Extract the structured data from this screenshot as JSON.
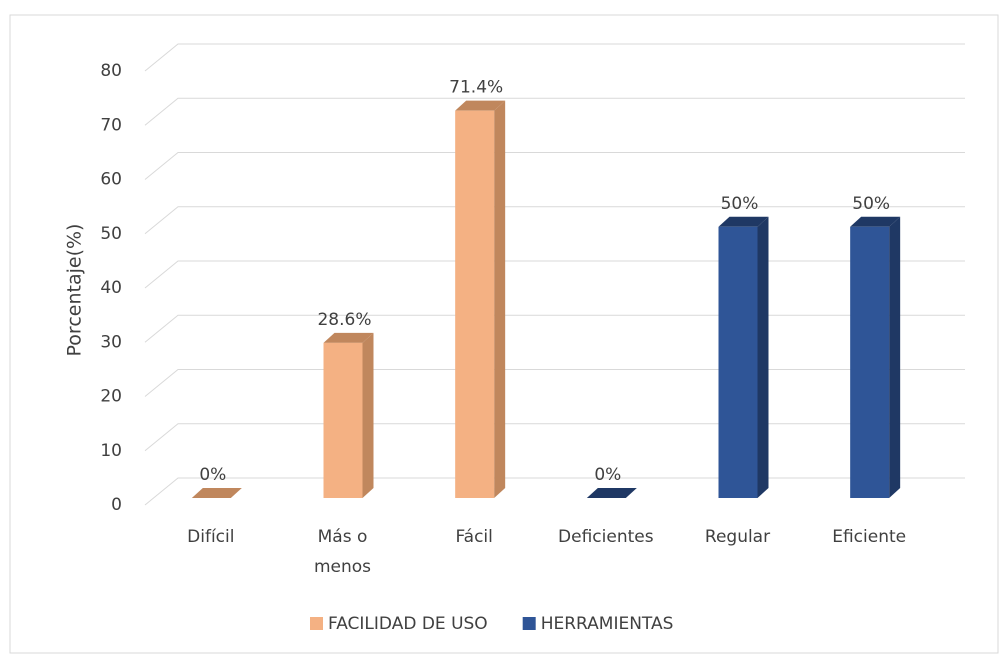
{
  "chart_data": {
    "type": "bar3d",
    "y_label": "Porcentaje(%)",
    "categories": [
      "Difícil",
      "Más o menos",
      "Fácil",
      "Deficientes",
      "Regular",
      "Eficiente"
    ],
    "series": [
      {
        "name": "FACILIDAD DE USO",
        "color": "#f4b183",
        "side_color": "#c0875d",
        "values": [
          0,
          28.6,
          71.4,
          null,
          null,
          null
        ],
        "value_labels": [
          "0%",
          "28.6%",
          "71.4%",
          null,
          null,
          null
        ]
      },
      {
        "name": "HERRAMIENTAS",
        "color": "#2f5597",
        "side_color": "#1f3864",
        "values": [
          null,
          null,
          null,
          0,
          50,
          50
        ],
        "value_labels": [
          null,
          null,
          null,
          "0%",
          "50%",
          "50%"
        ]
      }
    ],
    "ylim": [
      0,
      80
    ],
    "yticks": [
      0,
      10,
      20,
      30,
      40,
      50,
      60,
      70,
      80
    ],
    "grid": true,
    "legend": "bottom"
  }
}
